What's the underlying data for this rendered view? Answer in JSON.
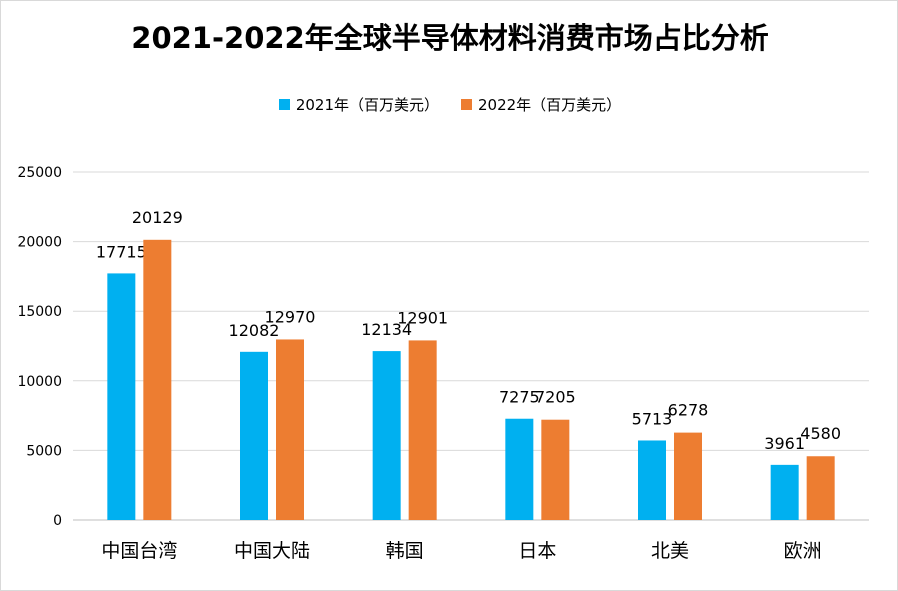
{
  "chart_data": {
    "type": "bar",
    "title": "2021-2022年全球半导体材料消费市场占比分析",
    "categories": [
      "中国台湾",
      "中国大陆",
      "韩国",
      "日本",
      "北美",
      "欧洲"
    ],
    "series": [
      {
        "name": "2021年（百万美元）",
        "color": "#00b0f0",
        "values": [
          17715,
          12082,
          12134,
          7275,
          5713,
          3961
        ]
      },
      {
        "name": "2022年（百万美元）",
        "color": "#ed7d31",
        "values": [
          20129,
          12970,
          12901,
          7205,
          6278,
          4580
        ]
      }
    ],
    "ylim": [
      0,
      25000
    ],
    "yticks": [
      0,
      5000,
      10000,
      15000,
      20000,
      25000
    ],
    "grid": true,
    "legend_position": "top"
  }
}
